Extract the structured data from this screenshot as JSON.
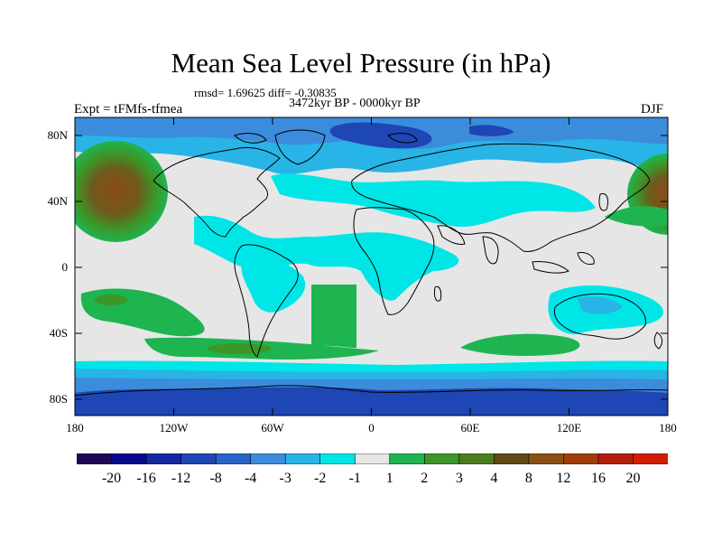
{
  "title": "Mean Sea Level Pressure (in hPa)",
  "stats": "rmsd= 1.69625 diff= -0.30835",
  "period": "3472kyr BP - 0000kyr BP",
  "experiment": "Expt = tFMfs-tfmea",
  "season": "DJF",
  "lat_labels": [
    "80N",
    "40N",
    "0",
    "40S",
    "80S"
  ],
  "lon_labels": [
    "180",
    "120W",
    "60W",
    "0",
    "60E",
    "120E",
    "180"
  ],
  "colorbar": {
    "colors": [
      "#1e0a5a",
      "#0a0a8c",
      "#1428a0",
      "#1e46b4",
      "#2864c8",
      "#3c8cdc",
      "#28b4e6",
      "#00e6e6",
      "#e6e6e6",
      "#1eb450",
      "#3c9628",
      "#4b7d1e",
      "#644b14",
      "#8c5014",
      "#a03c0a",
      "#b41e0a",
      "#d21e00"
    ],
    "labels": [
      "-20",
      "-16",
      "-12",
      "-8",
      "-4",
      "-3",
      "-2",
      "-1",
      "1",
      "2",
      "3",
      "4",
      "8",
      "12",
      "16",
      "20"
    ]
  }
}
